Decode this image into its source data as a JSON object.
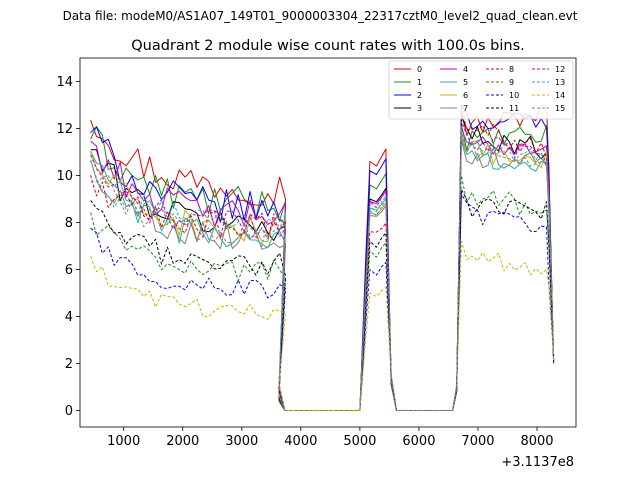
{
  "chart_data": {
    "type": "line",
    "suptitle": "Data file: modeM0/AS1A07_149T01_9000003304_22317cztM0_level2_quad_clean.evt",
    "title": "Quadrant 2 module wise count rates with 100.0s bins.",
    "xlabel": "",
    "ylabel": "",
    "x_offset_label": "+3.1137e8",
    "xlim": [
      260,
      8660
    ],
    "ylim": [
      -0.7,
      15
    ],
    "xticks": [
      {
        "value": 1000,
        "label": "1000"
      },
      {
        "value": 2000,
        "label": "2000"
      },
      {
        "value": 3000,
        "label": "3000"
      },
      {
        "value": 4000,
        "label": "4000"
      },
      {
        "value": 5000,
        "label": "5000"
      },
      {
        "value": 6000,
        "label": "6000"
      },
      {
        "value": 7000,
        "label": "7000"
      },
      {
        "value": 8000,
        "label": "8000"
      }
    ],
    "yticks": [
      {
        "value": 0,
        "label": "0"
      },
      {
        "value": 2,
        "label": "2"
      },
      {
        "value": 4,
        "label": "4"
      },
      {
        "value": 6,
        "label": "6"
      },
      {
        "value": 8,
        "label": "8"
      },
      {
        "value": 10,
        "label": "10"
      },
      {
        "value": 12,
        "label": "12"
      },
      {
        "value": 14,
        "label": "14"
      }
    ],
    "legend_position": "top-right",
    "series": [
      {
        "name": "0",
        "color": "#e00000",
        "dashed": false,
        "levels": [
          12.7,
          9.4,
          10.6,
          12.7,
          12.7,
          10.3
        ]
      },
      {
        "name": "1",
        "color": "#1a8c1a",
        "dashed": false,
        "levels": [
          11.8,
          8.7,
          9.6,
          12.2,
          11.7,
          10.0
        ]
      },
      {
        "name": "2",
        "color": "#0000ff",
        "dashed": false,
        "levels": [
          12.0,
          8.5,
          10.2,
          13.0,
          12.3,
          10.4
        ]
      },
      {
        "name": "3",
        "color": "#000000",
        "dashed": false,
        "levels": [
          11.2,
          7.8,
          9.0,
          12.5,
          11.1,
          9.7
        ]
      },
      {
        "name": "4",
        "color": "#c000c0",
        "dashed": false,
        "levels": [
          11.5,
          8.2,
          8.9,
          12.0,
          11.2,
          9.6
        ]
      },
      {
        "name": "5",
        "color": "#20b2aa",
        "dashed": false,
        "levels": [
          11.0,
          7.2,
          8.6,
          11.6,
          10.3,
          8.4
        ]
      },
      {
        "name": "6",
        "color": "#c8b400",
        "dashed": false,
        "levels": [
          10.9,
          7.5,
          8.4,
          11.8,
          10.6,
          9.0
        ]
      },
      {
        "name": "7",
        "color": "#808080",
        "dashed": false,
        "levels": [
          10.5,
          7.3,
          8.3,
          11.5,
          10.7,
          8.6
        ]
      },
      {
        "name": "8",
        "color": "#e00000",
        "dashed": true,
        "levels": [
          9.8,
          7.8,
          7.6,
          13.0,
          10.9,
          9.3
        ]
      },
      {
        "name": "9",
        "color": "#1a8c1a",
        "dashed": true,
        "levels": [
          8.2,
          5.9,
          6.8,
          10.0,
          8.5,
          7.3
        ]
      },
      {
        "name": "10",
        "color": "#0000ff",
        "dashed": true,
        "levels": [
          7.5,
          5.1,
          6.0,
          9.2,
          7.6,
          5.5
        ]
      },
      {
        "name": "11",
        "color": "#000000",
        "dashed": true,
        "levels": [
          8.6,
          6.2,
          7.2,
          9.4,
          8.5,
          7.1
        ]
      },
      {
        "name": "12",
        "color": "#c000c0",
        "dashed": true,
        "levels": [
          10.4,
          7.8,
          8.9,
          12.3,
          10.9,
          9.5
        ]
      },
      {
        "name": "13",
        "color": "#20b2aa",
        "dashed": true,
        "levels": [
          10.1,
          7.9,
          8.7,
          12.1,
          10.6,
          9.1
        ]
      },
      {
        "name": "14",
        "color": "#c8b400",
        "dashed": true,
        "levels": [
          6.2,
          4.2,
          5.0,
          7.2,
          6.0,
          5.3
        ]
      },
      {
        "name": "15",
        "color": "#808080",
        "dashed": true,
        "levels": [
          10.3,
          7.5,
          8.5,
          11.9,
          10.4,
          9.0
        ]
      }
    ]
  }
}
